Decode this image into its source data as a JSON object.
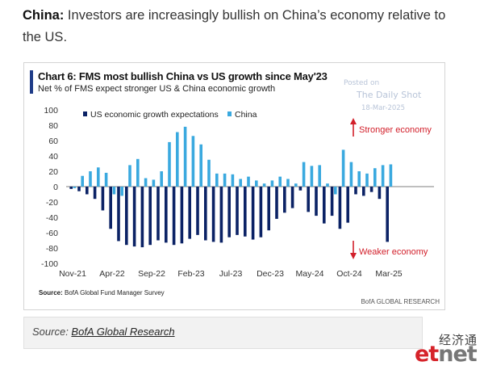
{
  "intro": {
    "label": "China:",
    "text": " Investors are increasingly bullish on China’s economy relative to the US."
  },
  "chart_data": {
    "type": "bar",
    "title": "Chart 6: FMS most bullish China vs US growth since May'23",
    "subtitle": "Net % of FMS expect stronger US & China economic growth",
    "watermark": [
      "Posted on",
      "The Daily Shot",
      "18-Mar-2025"
    ],
    "ylim": [
      -100,
      100
    ],
    "yticks": [
      100,
      80,
      60,
      40,
      20,
      0,
      -20,
      -40,
      -60,
      -80,
      -100
    ],
    "xtick_labels": [
      "Nov-21",
      "Apr-22",
      "Sep-22",
      "Feb-23",
      "Jul-23",
      "Dec-23",
      "May-24",
      "Oct-24",
      "Mar-25"
    ],
    "xtick_indices": [
      0,
      5,
      10,
      15,
      20,
      25,
      30,
      35,
      40
    ],
    "legend": "top-left",
    "series": [
      {
        "name": "US economic growth expectations",
        "color": "#0b2265",
        "values": [
          -3,
          -6,
          -10,
          -16,
          -31,
          -55,
          -71,
          -76,
          -78,
          -79,
          -76,
          -70,
          -73,
          -76,
          -74,
          -68,
          -63,
          -70,
          -72,
          -73,
          -66,
          -63,
          -65,
          -69,
          -66,
          -57,
          -42,
          -34,
          -28,
          -5,
          -33,
          -38,
          -48,
          -38,
          -55,
          -47,
          -10,
          -12,
          -7,
          -16,
          -72
        ]
      },
      {
        "name": "China",
        "color": "#3aa9df",
        "values": [
          -2,
          14,
          20,
          25,
          18,
          -10,
          -12,
          28,
          36,
          11,
          9,
          20,
          58,
          71,
          78,
          66,
          55,
          35,
          17,
          17,
          16,
          10,
          13,
          8,
          4,
          8,
          13,
          10,
          4,
          32,
          27,
          28,
          4,
          -10,
          48,
          32,
          20,
          17,
          24,
          28,
          29
        ]
      }
    ],
    "annotations": {
      "up": "Stronger economy",
      "down": "Weaker economy"
    },
    "annotation_color": "#d2202b"
  },
  "chart_meta": {
    "source_label": "Source:",
    "source_text": " BofA Global Fund Manager Survey",
    "brand": "BofA GLOBAL RESEARCH"
  },
  "caption": {
    "prefix": "Source: ",
    "link": "BofA Global Research"
  },
  "logo": {
    "chinese": "经济通",
    "et": "et",
    "net": "net"
  }
}
